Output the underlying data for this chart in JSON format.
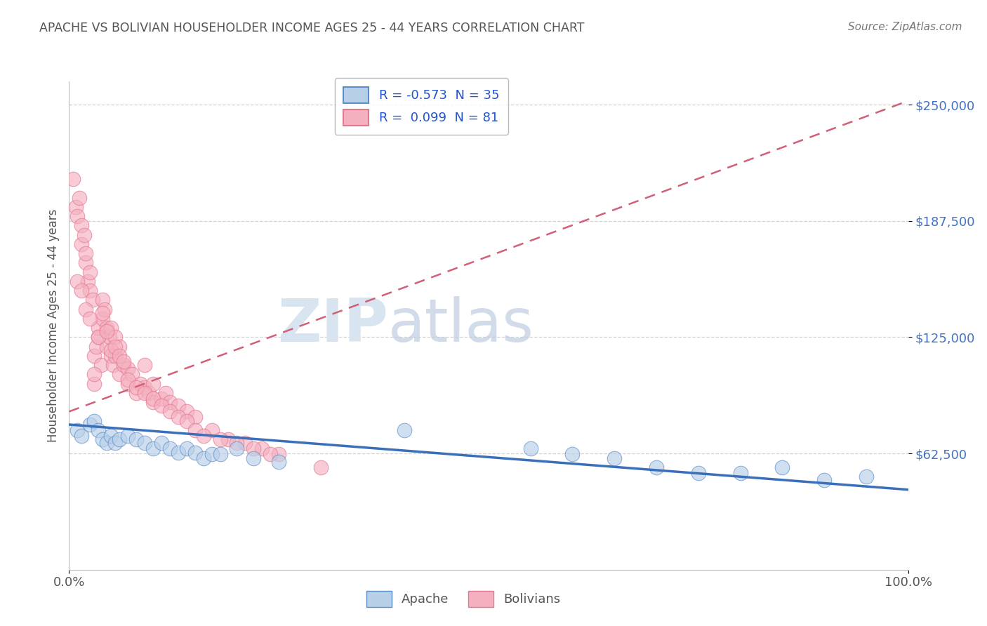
{
  "title": "APACHE VS BOLIVIAN HOUSEHOLDER INCOME AGES 25 - 44 YEARS CORRELATION CHART",
  "source_text": "Source: ZipAtlas.com",
  "ylabel": "Householder Income Ages 25 - 44 years",
  "ytick_values": [
    62500,
    125000,
    187500,
    250000
  ],
  "ytick_labels": [
    "$62,500",
    "$125,000",
    "$187,500",
    "$250,000"
  ],
  "xlim": [
    0,
    100
  ],
  "ylim": [
    0,
    262500
  ],
  "apache_R": -0.573,
  "apache_N": 35,
  "bolivian_R": 0.099,
  "bolivian_N": 81,
  "apache_color": "#b8cfe8",
  "apache_edge_color": "#5b8dc8",
  "apache_line_color": "#3a6fba",
  "bolivian_color": "#f5b0c0",
  "bolivian_edge_color": "#e07890",
  "bolivian_line_color": "#d06075",
  "legend_color": "#2255cc",
  "grid_color": "#c8c8c8",
  "title_color": "#555555",
  "source_color": "#777777",
  "ytick_color": "#4472c4",
  "watermark_color": "#d8e4f0",
  "apache_x": [
    1.0,
    1.5,
    2.5,
    3.0,
    3.5,
    4.0,
    4.5,
    5.0,
    5.5,
    6.0,
    7.0,
    8.0,
    9.0,
    10.0,
    11.0,
    12.0,
    13.0,
    14.0,
    15.0,
    16.0,
    17.0,
    18.0,
    20.0,
    22.0,
    25.0,
    40.0,
    55.0,
    60.0,
    65.0,
    70.0,
    75.0,
    80.0,
    85.0,
    90.0,
    95.0
  ],
  "apache_y": [
    75000,
    72000,
    78000,
    80000,
    75000,
    70000,
    68000,
    72000,
    68000,
    70000,
    72000,
    70000,
    68000,
    65000,
    68000,
    65000,
    63000,
    65000,
    63000,
    60000,
    62000,
    62000,
    65000,
    60000,
    58000,
    75000,
    65000,
    62000,
    60000,
    55000,
    52000,
    52000,
    55000,
    48000,
    50000
  ],
  "bolivian_x": [
    0.5,
    0.8,
    1.0,
    1.2,
    1.5,
    1.5,
    1.8,
    2.0,
    2.0,
    2.2,
    2.5,
    2.5,
    2.8,
    3.0,
    3.0,
    3.2,
    3.5,
    3.5,
    3.8,
    4.0,
    4.0,
    4.2,
    4.5,
    4.5,
    4.8,
    5.0,
    5.0,
    5.2,
    5.5,
    5.5,
    6.0,
    6.0,
    6.5,
    7.0,
    7.0,
    7.5,
    8.0,
    8.5,
    9.0,
    9.0,
    9.5,
    10.0,
    10.0,
    11.0,
    11.5,
    12.0,
    13.0,
    14.0,
    15.0,
    17.0,
    19.0,
    21.0,
    23.0,
    25.0,
    30.0,
    1.0,
    1.5,
    2.0,
    2.5,
    3.0,
    3.5,
    4.0,
    4.5,
    5.0,
    5.5,
    6.0,
    6.5,
    7.0,
    8.0,
    9.0,
    10.0,
    11.0,
    12.0,
    13.0,
    14.0,
    15.0,
    16.0,
    18.0,
    20.0,
    22.0,
    24.0
  ],
  "bolivian_y": [
    210000,
    195000,
    190000,
    200000,
    185000,
    175000,
    180000,
    165000,
    170000,
    155000,
    160000,
    150000,
    145000,
    100000,
    115000,
    120000,
    125000,
    130000,
    110000,
    135000,
    145000,
    140000,
    130000,
    120000,
    125000,
    115000,
    130000,
    110000,
    125000,
    115000,
    120000,
    105000,
    110000,
    108000,
    100000,
    105000,
    95000,
    100000,
    98000,
    110000,
    95000,
    90000,
    100000,
    92000,
    95000,
    90000,
    88000,
    85000,
    82000,
    75000,
    70000,
    68000,
    65000,
    62000,
    55000,
    155000,
    150000,
    140000,
    135000,
    105000,
    125000,
    138000,
    128000,
    118000,
    120000,
    115000,
    112000,
    102000,
    98000,
    95000,
    92000,
    88000,
    85000,
    82000,
    80000,
    75000,
    72000,
    70000,
    68000,
    65000,
    62000
  ],
  "apache_trend_x0": 0,
  "apache_trend_y0": 78000,
  "apache_trend_x1": 100,
  "apache_trend_y1": 43000,
  "bolivian_trend_x0": 0,
  "bolivian_trend_y0": 85000,
  "bolivian_trend_x1": 100,
  "bolivian_trend_y1": 252000
}
